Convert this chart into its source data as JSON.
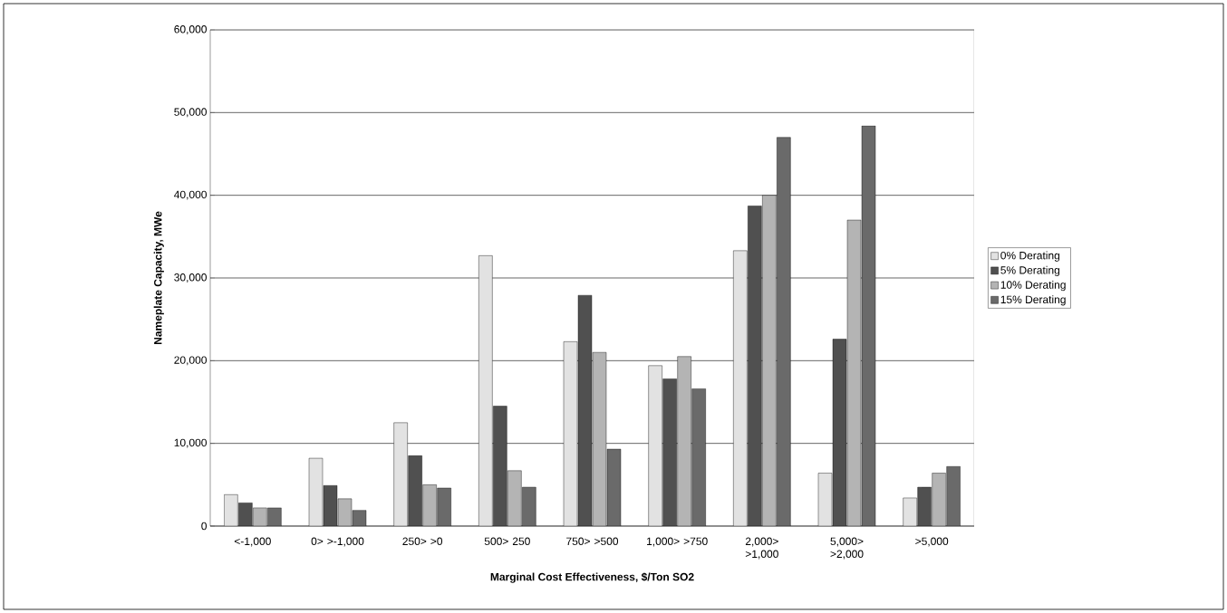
{
  "chart_data": {
    "type": "bar",
    "xlabel": "Marginal Cost Effectiveness, $/Ton SO2",
    "ylabel": "Nameplate Capacity, MWe",
    "categories": [
      "<-1,000",
      "0> >-1,000",
      "250> >0",
      "500> 250",
      "750> >500",
      "1,000> >750",
      "2,000> >1,000",
      "5,000> >2,000",
      ">5,000"
    ],
    "series": [
      {
        "name": "0% Derating",
        "color": "#e2e2e2",
        "values": [
          3800,
          8200,
          12500,
          32700,
          22300,
          19400,
          33300,
          6400,
          3400
        ]
      },
      {
        "name": "5% Derating",
        "color": "#505050",
        "values": [
          2800,
          4900,
          8500,
          14500,
          27900,
          17800,
          38700,
          22600,
          4700
        ]
      },
      {
        "name": "10% Derating",
        "color": "#b4b4b4",
        "values": [
          2200,
          3300,
          5000,
          6700,
          21000,
          20500,
          40000,
          37000,
          6400
        ]
      },
      {
        "name": "15% Derating",
        "color": "#6a6a6a",
        "values": [
          2200,
          1900,
          4600,
          4700,
          9300,
          16600,
          47000,
          48400,
          7200
        ]
      }
    ],
    "ylim": [
      0,
      60000
    ],
    "yticks": [
      {
        "value": 0,
        "label": "0"
      },
      {
        "value": 10000,
        "label": "10,000"
      },
      {
        "value": 20000,
        "label": "20,000"
      },
      {
        "value": 30000,
        "label": "30,000"
      },
      {
        "value": 40000,
        "label": "40,000"
      },
      {
        "value": 50000,
        "label": "50,000"
      },
      {
        "value": 60000,
        "label": "60,000"
      }
    ],
    "grid": "y",
    "legend": "right"
  }
}
